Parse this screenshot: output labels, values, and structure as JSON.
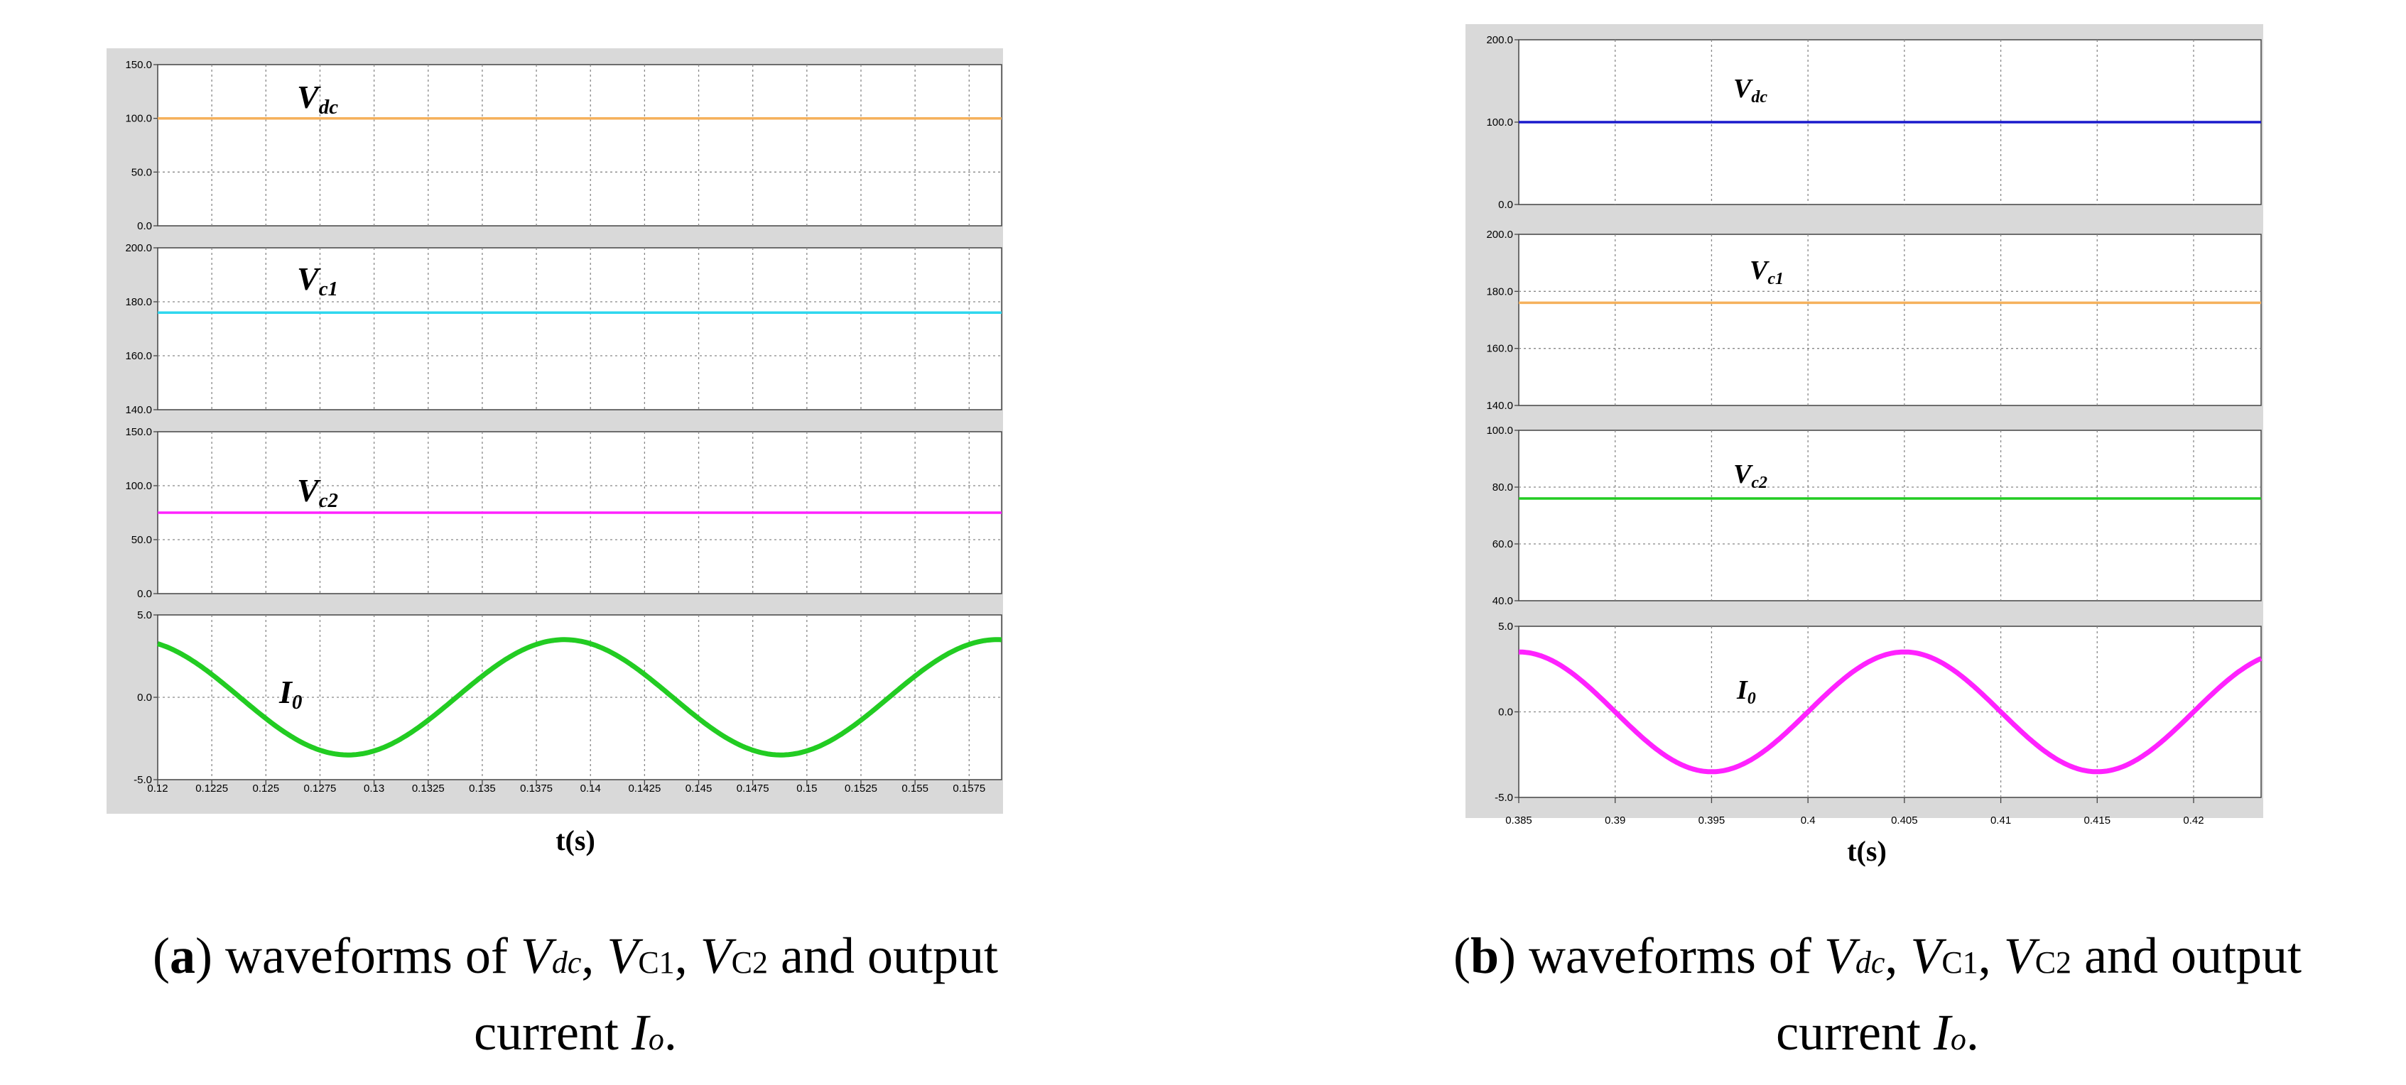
{
  "chart_data": [
    {
      "id": "a",
      "type": "line",
      "xlabel": "t(s)",
      "x_ticks": [
        "0.12",
        "0.1225",
        "0.125",
        "0.1275",
        "0.13",
        "0.1325",
        "0.135",
        "0.1375",
        "0.14",
        "0.1425",
        "0.145",
        "0.1475",
        "0.15",
        "0.1525",
        "0.155",
        "0.1575"
      ],
      "x_range": [
        0.12,
        0.159
      ],
      "panels": [
        {
          "name": "Vdc",
          "label": "V",
          "sub": "dc",
          "color": "#f5b15c",
          "ylim": [
            0,
            150
          ],
          "y_ticks": [
            "150.0",
            "100.0",
            "50.0",
            "0.0"
          ],
          "y_tick_values": [
            150,
            100,
            50,
            0
          ],
          "kind": "const",
          "value": 100
        },
        {
          "name": "Vc1",
          "label": "V",
          "sub": "c1",
          "color": "#2fd7ef",
          "ylim": [
            140,
            200
          ],
          "y_ticks": [
            "200.0",
            "180.0",
            "160.0",
            "140.0"
          ],
          "y_tick_values": [
            200,
            180,
            160,
            140
          ],
          "kind": "const",
          "value": 176
        },
        {
          "name": "Vc2",
          "label": "V",
          "sub": "c2",
          "color": "#ff22ff",
          "ylim": [
            0,
            150
          ],
          "y_ticks": [
            "150.0",
            "100.0",
            "50.0",
            "0.0"
          ],
          "y_tick_values": [
            150,
            100,
            50,
            0
          ],
          "kind": "const",
          "value": 75
        },
        {
          "name": "I0",
          "label": "I",
          "sub": "0",
          "color": "#22cc22",
          "ylim": [
            -5,
            5
          ],
          "y_ticks": [
            "5.0",
            "0.0",
            "-5.0"
          ],
          "y_tick_values": [
            5,
            0,
            -5
          ],
          "kind": "sine",
          "amplitude": 3.5,
          "period": 0.02,
          "peak_time": 0.1388
        }
      ]
    },
    {
      "id": "b",
      "type": "line",
      "xlabel": "t(s)",
      "x_ticks": [
        "0.385",
        "0.39",
        "0.395",
        "0.4",
        "0.405",
        "0.41",
        "0.415",
        "0.42"
      ],
      "x_range": [
        0.385,
        0.4235
      ],
      "panels": [
        {
          "name": "Vdc",
          "label": "V",
          "sub": "dc",
          "color": "#1a1acc",
          "ylim": [
            0,
            200
          ],
          "y_ticks": [
            "200.0",
            "100.0",
            "0.0"
          ],
          "y_tick_values": [
            200,
            100,
            0
          ],
          "kind": "const",
          "value": 100
        },
        {
          "name": "Vc1",
          "label": "V",
          "sub": "c1",
          "color": "#f5b15c",
          "ylim": [
            140,
            200
          ],
          "y_ticks": [
            "200.0",
            "180.0",
            "160.0",
            "140.0"
          ],
          "y_tick_values": [
            200,
            180,
            160,
            140
          ],
          "kind": "const",
          "value": 176
        },
        {
          "name": "Vc2",
          "label": "V",
          "sub": "c2",
          "color": "#22cc22",
          "ylim": [
            40,
            100
          ],
          "y_ticks": [
            "100.0",
            "80.0",
            "60.0",
            "40.0"
          ],
          "y_tick_values": [
            100,
            80,
            60,
            40
          ],
          "kind": "const",
          "value": 76
        },
        {
          "name": "I0",
          "label": "I",
          "sub": "0",
          "color": "#ff22ff",
          "ylim": [
            -5,
            5
          ],
          "y_ticks": [
            "5.0",
            "0.0",
            "-5.0"
          ],
          "y_tick_values": [
            5,
            0,
            -5
          ],
          "kind": "sine",
          "amplitude": 3.5,
          "period": 0.02,
          "peak_time": 0.405
        }
      ]
    }
  ],
  "captions": [
    {
      "letter": "a",
      "open": "(",
      "close": ")",
      "pre": " waveforms of ",
      "v1": "V",
      "s1": "dc",
      "sep1": ", ",
      "v2": "V",
      "s2": "C1",
      "sep2": ", ",
      "v3": "V",
      "s3": "C2",
      "post": " and output",
      "line2": "current ",
      "io": "I",
      "ios": "o",
      "end": "."
    },
    {
      "letter": "b",
      "open": "(",
      "close": ")",
      "pre": " waveforms of ",
      "v1": "V",
      "s1": "dc",
      "sep1": ", ",
      "v2": "V",
      "s2": "C1",
      "sep2": ", ",
      "v3": "V",
      "s3": "C2",
      "post": " and output",
      "line2": "current ",
      "io": "I",
      "ios": "o",
      "end": "."
    }
  ]
}
